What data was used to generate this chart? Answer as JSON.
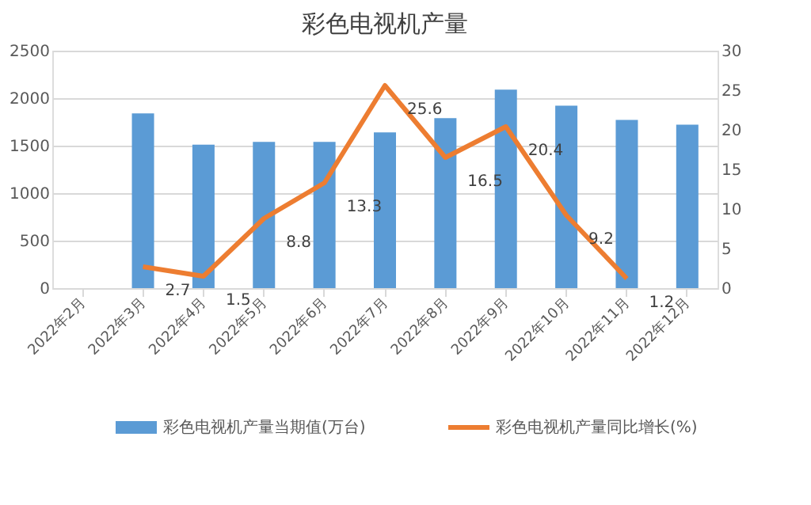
{
  "chart_data": {
    "type": "bar",
    "title": "彩色电视机产量",
    "categories": [
      "2022年2月",
      "2022年3月",
      "2022年4月",
      "2022年5月",
      "2022年6月",
      "2022年7月",
      "2022年8月",
      "2022年9月",
      "2022年10月",
      "2022年11月",
      "2022年12月"
    ],
    "series": [
      {
        "name": "彩色电视机产量当期值(万台)",
        "color": "#5b9bd5",
        "values": [
          null,
          1840,
          1510,
          1540,
          1540,
          1640,
          1790,
          2090,
          1920,
          1770,
          1720
        ]
      },
      {
        "name": "彩色电视机产量同比增长(%)",
        "type": "line",
        "axis": "y2",
        "color": "#ed7d31",
        "values": [
          null,
          2.7,
          1.5,
          8.8,
          13.3,
          25.6,
          16.5,
          20.4,
          9.2,
          1.2,
          null
        ],
        "value_labels": [
          null,
          "2.7",
          "1.5",
          "8.8",
          "13.3",
          "25.6",
          "16.5",
          "20.4",
          "9.2",
          "1.2",
          null
        ]
      }
    ],
    "ylim": [
      0,
      2500
    ],
    "yticks": [
      0,
      500,
      1000,
      1500,
      2000,
      2500
    ],
    "y2lim": [
      0,
      30
    ],
    "y2ticks": [
      0,
      5,
      10,
      15,
      20,
      25,
      30
    ],
    "grid": "y",
    "legend": "bottom",
    "marker": "none",
    "line_style": "solid"
  }
}
